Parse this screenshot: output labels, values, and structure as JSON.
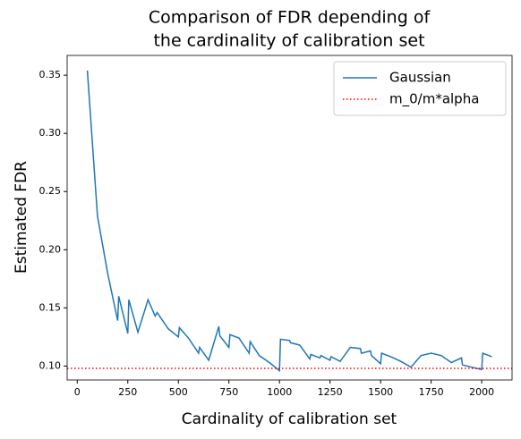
{
  "chart_data": {
    "type": "line",
    "title": [
      "Comparison of FDR depending of",
      "the cardinality of calibration set"
    ],
    "xlabel": "Cardinality of calibration set",
    "ylabel": "Estimated FDR",
    "x": [
      50,
      100,
      150,
      200,
      205,
      250,
      255,
      300,
      350,
      385,
      395,
      450,
      500,
      505,
      550,
      600,
      605,
      650,
      700,
      705,
      750,
      755,
      800,
      850,
      855,
      900,
      950,
      1000,
      1005,
      1050,
      1055,
      1100,
      1150,
      1155,
      1200,
      1205,
      1250,
      1255,
      1300,
      1350,
      1400,
      1405,
      1450,
      1455,
      1500,
      1505,
      1550,
      1600,
      1650,
      1700,
      1750,
      1800,
      1850,
      1900,
      1905,
      1950,
      2000,
      2005,
      2050
    ],
    "series": [
      {
        "name": "Gaussian",
        "color": "#1f77b4",
        "values": [
          0.354,
          0.229,
          0.18,
          0.139,
          0.16,
          0.128,
          0.157,
          0.129,
          0.157,
          0.143,
          0.146,
          0.132,
          0.125,
          0.133,
          0.124,
          0.111,
          0.116,
          0.105,
          0.134,
          0.126,
          0.116,
          0.127,
          0.124,
          0.111,
          0.121,
          0.109,
          0.103,
          0.096,
          0.123,
          0.122,
          0.12,
          0.118,
          0.106,
          0.11,
          0.107,
          0.109,
          0.105,
          0.108,
          0.104,
          0.116,
          0.115,
          0.111,
          0.113,
          0.109,
          0.102,
          0.111,
          0.108,
          0.104,
          0.099,
          0.109,
          0.111,
          0.109,
          0.103,
          0.107,
          0.101,
          0.099,
          0.097,
          0.111,
          0.108
        ]
      }
    ],
    "hline": {
      "name": "m_0/m*alpha",
      "value": 0.098,
      "color": "#ff0000"
    },
    "xlim": [
      -50,
      2150
    ],
    "xticks": [
      0,
      250,
      500,
      750,
      1000,
      1250,
      1500,
      1750,
      2000
    ],
    "ylim": [
      0.088,
      0.367
    ],
    "yticks": [
      {
        "value": 0.1,
        "label": "0.10"
      },
      0.15,
      {
        "value": 0.2,
        "label": "0.20"
      },
      0.25,
      {
        "value": 0.3,
        "label": "0.30"
      },
      0.35
    ],
    "legend": "upper right"
  }
}
